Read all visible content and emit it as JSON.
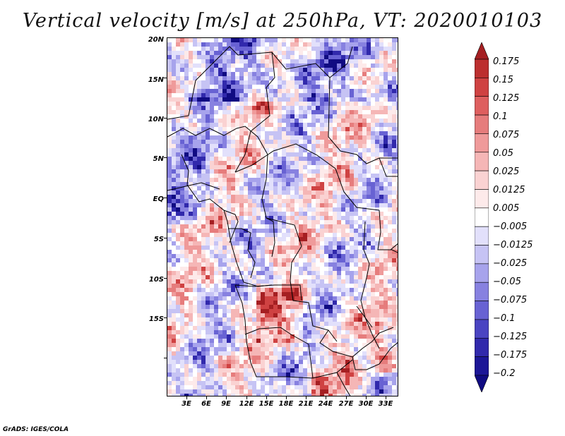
{
  "title": "Vertical velocity [m/s] at 250hPa, VT: 2020010103",
  "footer": "GrADS: IGES/COLA",
  "latitude_labels": [
    "20N",
    "15N",
    "10N",
    "5N",
    "EQ",
    "5S",
    "10S",
    "15S"
  ],
  "longitude_labels": [
    "3E",
    "6E",
    "9E",
    "12E",
    "15E",
    "18E",
    "21E",
    "24E",
    "27E",
    "30E",
    "33E"
  ],
  "colorbar": {
    "labels": [
      "0.175",
      "0.15",
      "0.125",
      "0.1",
      "0.075",
      "0.05",
      "0.025",
      "0.0125",
      "0.005",
      "−0.005",
      "−0.0125",
      "−0.025",
      "−0.05",
      "−0.075",
      "−0.1",
      "−0.125",
      "−0.175",
      "−0.2"
    ],
    "colors": [
      "#a51f22",
      "#bc2f2f",
      "#cf4242",
      "#de5f5f",
      "#e67c7c",
      "#ef9a9a",
      "#f5b6b6",
      "#fad2d2",
      "#fdeaea",
      "#ffffff",
      "#e2e0fb",
      "#c6c3f4",
      "#a7a3ec",
      "#8781e0",
      "#6862d3",
      "#4a44c2",
      "#3129ac",
      "#1c1697",
      "#100b82"
    ]
  },
  "map": {
    "field_colors": [
      "#100b82",
      "#3129ac",
      "#6862d3",
      "#8781e0",
      "#a7a3ec",
      "#c6c3f4",
      "#e2e0fb",
      "#ffffff",
      "#fdeaea",
      "#fad2d2",
      "#f5b6b6",
      "#ef9a9a",
      "#e67c7c",
      "#cf4242",
      "#a51f22"
    ],
    "boundary_color": "#000000"
  }
}
